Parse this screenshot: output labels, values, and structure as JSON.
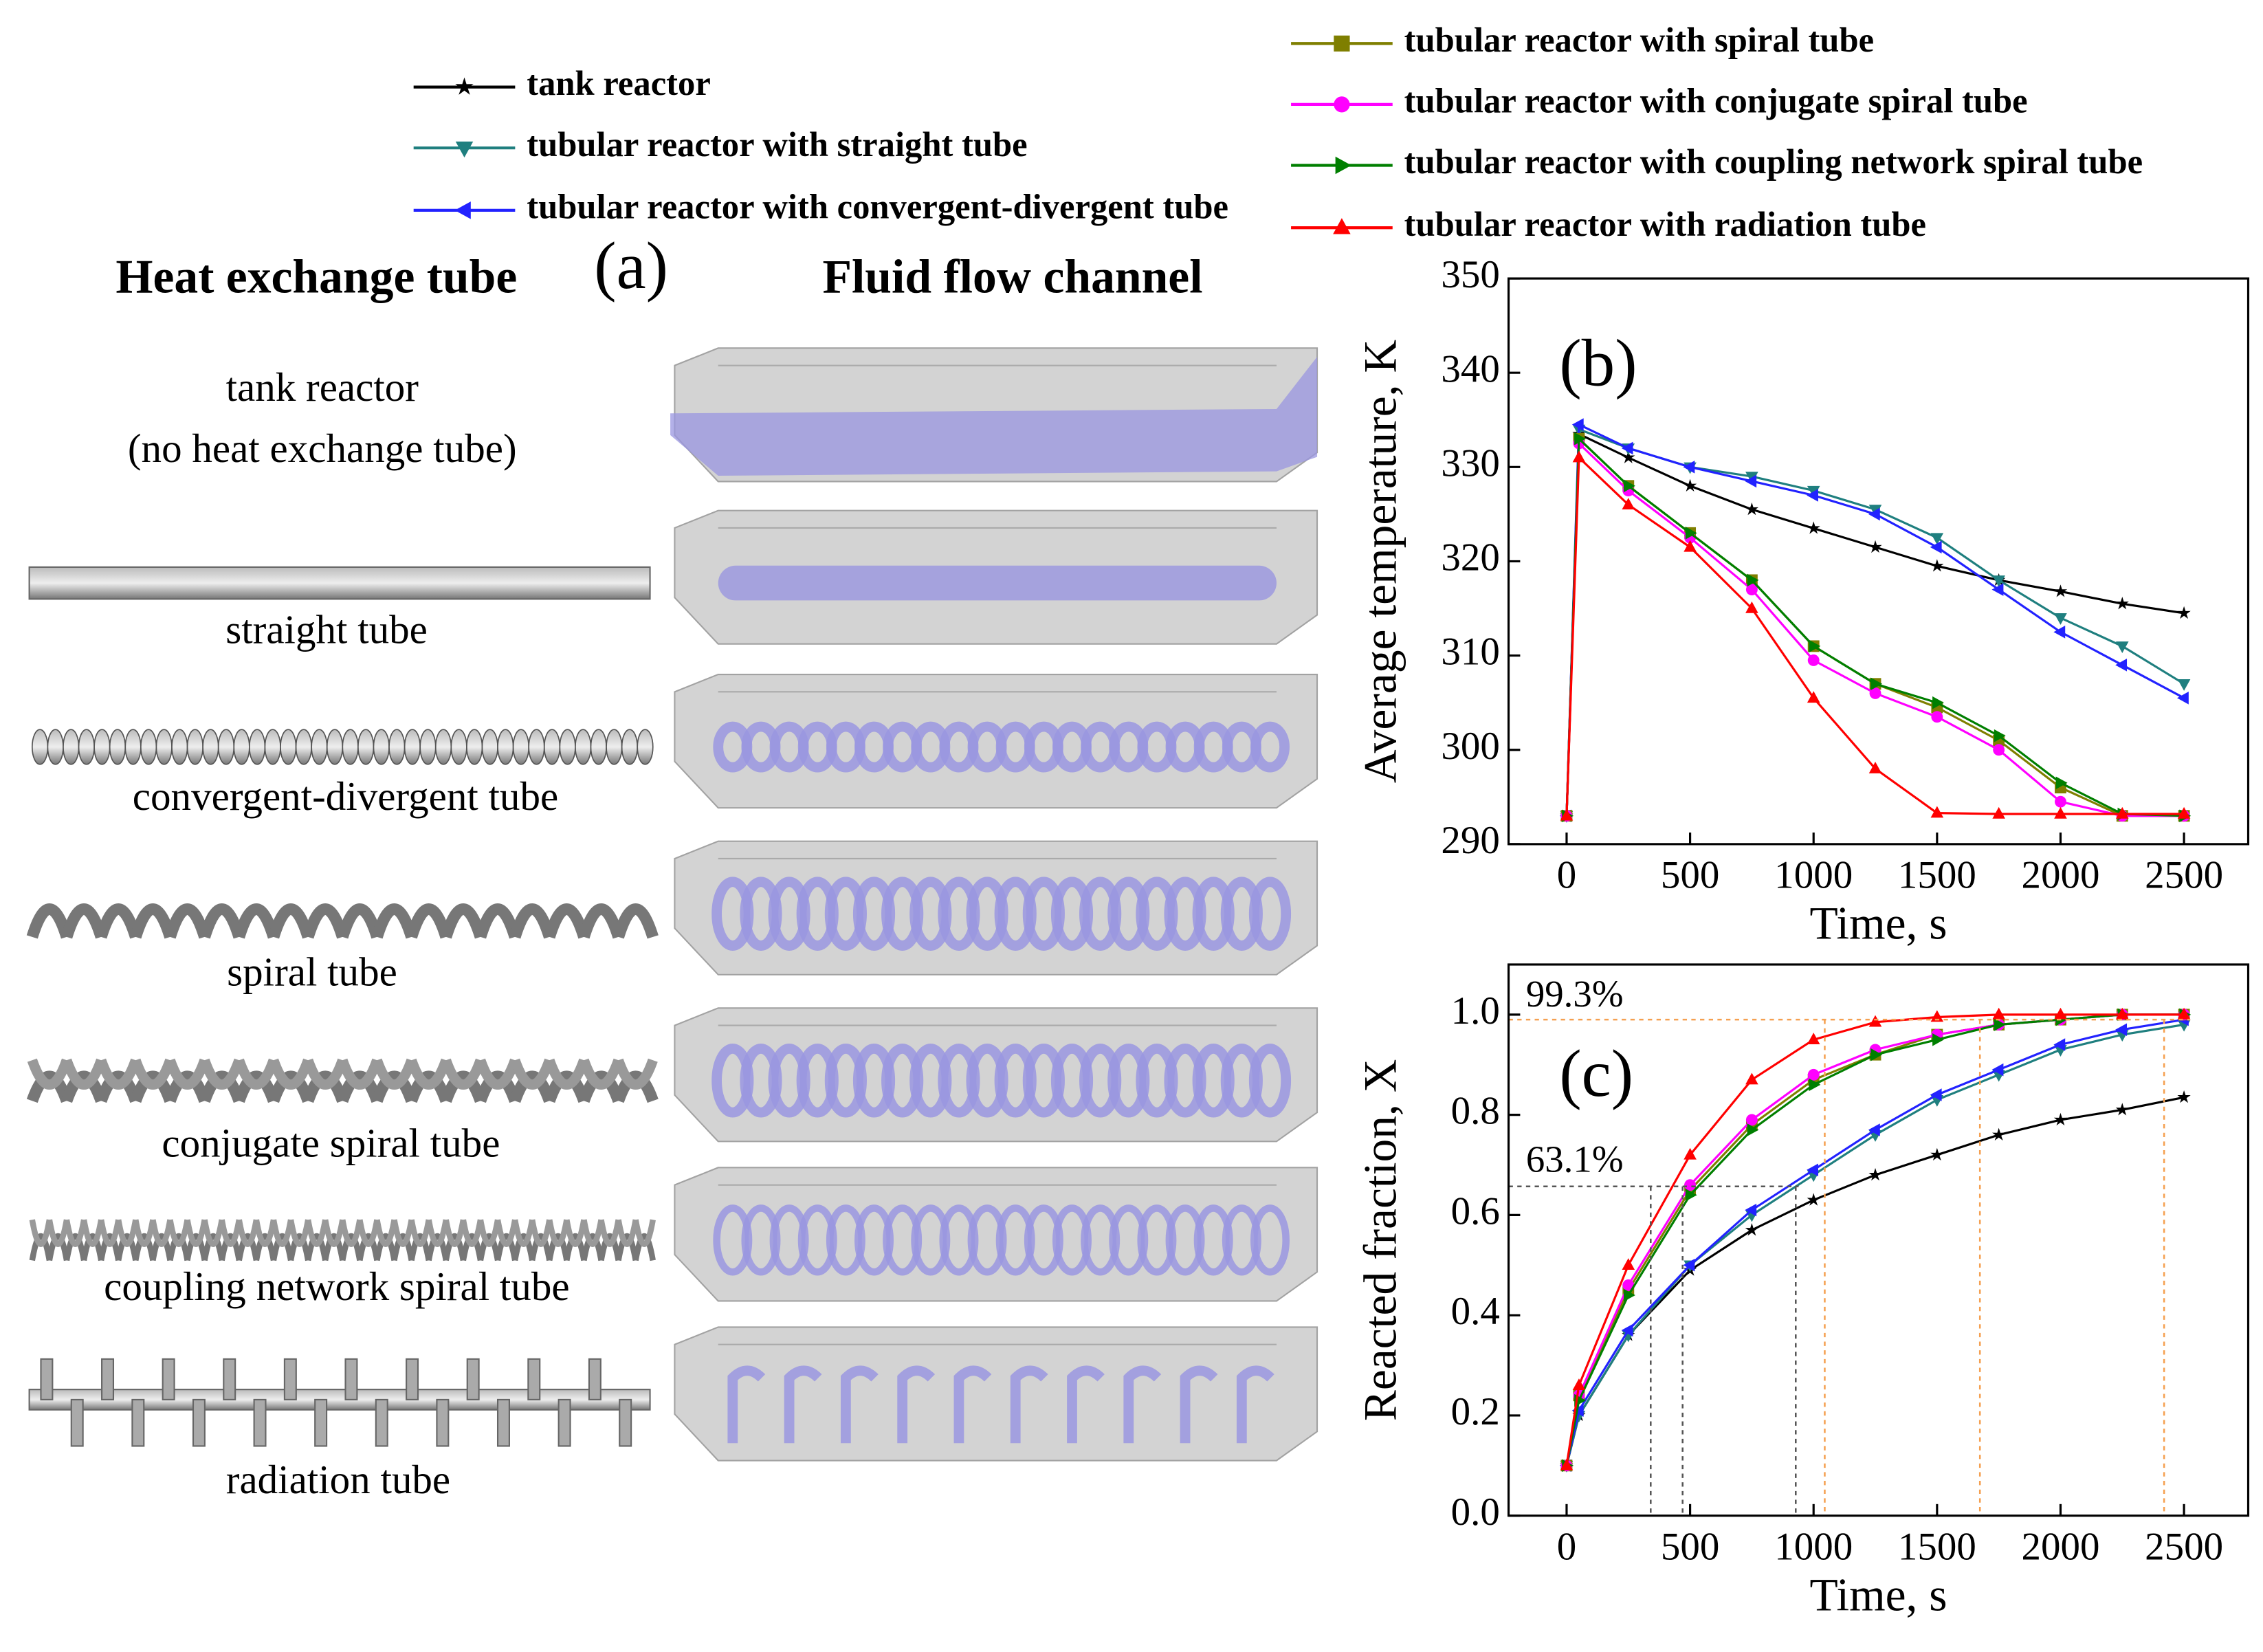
{
  "panel_a": {
    "label": "(a)",
    "headers": [
      "Heat exchange tube",
      "Fluid flow channel"
    ],
    "tubes": [
      [
        "tank reactor",
        "(no heat exchange tube)"
      ],
      [
        "straight tube"
      ],
      [
        "convergent-divergent tube"
      ],
      [
        "spiral tube"
      ],
      [
        "conjugate spiral tube"
      ],
      [
        "coupling network spiral tube"
      ],
      [
        "radiation tube"
      ]
    ]
  },
  "chart_data": [
    {
      "type": "line",
      "panel_label": "(b)",
      "ylabel": "Average temperature, K",
      "xlabel": "Time, s",
      "x": [
        0,
        50,
        250,
        500,
        750,
        1000,
        1250,
        1500,
        1750,
        2000,
        2250,
        2500
      ],
      "xlim": [
        -235,
        2760
      ],
      "xticks": [
        0,
        500,
        1000,
        1500,
        2000,
        2500
      ],
      "ylim": [
        290,
        350
      ],
      "yticks": [
        290,
        300,
        310,
        320,
        330,
        340,
        350
      ],
      "series": [
        {
          "name": "tank reactor",
          "color": "#000000",
          "marker": "star",
          "values": [
            293,
            333.5,
            331,
            328,
            325.5,
            323.5,
            321.5,
            319.5,
            318,
            316.8,
            315.5,
            314.5
          ]
        },
        {
          "name": "tubular reactor with straight tube",
          "color": "#1f7f7f",
          "marker": "tri-down",
          "values": [
            293,
            334,
            332,
            330,
            329,
            327.5,
            325.5,
            322.5,
            318,
            314,
            311,
            307
          ]
        },
        {
          "name": "tubular reactor with convergent-divergent tube",
          "color": "#2222ff",
          "marker": "tri-left",
          "values": [
            293,
            334.5,
            332,
            330,
            328.5,
            327,
            325,
            321.5,
            317,
            312.5,
            309,
            305.5
          ]
        },
        {
          "name": "tubular reactor with spiral tube",
          "color": "#7f7f00",
          "marker": "square",
          "values": [
            293,
            333,
            328,
            323,
            318,
            311,
            307,
            304.5,
            301,
            296,
            293,
            293
          ]
        },
        {
          "name": "tubular reactor with conjugate spiral tube",
          "color": "#ff00ff",
          "marker": "circle",
          "values": [
            293,
            332.5,
            327.5,
            322.5,
            317,
            309.5,
            306,
            303.5,
            300,
            294.5,
            293,
            293
          ]
        },
        {
          "name": "tubular reactor with coupling network spiral tube",
          "color": "#007f00",
          "marker": "tri-right",
          "values": [
            293,
            333,
            328,
            323,
            318,
            311,
            307,
            305,
            301.5,
            296.5,
            293.2,
            293
          ]
        },
        {
          "name": "tubular reactor with radiation tube",
          "color": "#ff0000",
          "marker": "tri-up",
          "values": [
            293,
            331,
            326,
            321.5,
            315,
            305.5,
            298,
            293.3,
            293.2,
            293.2,
            293.2,
            293.2
          ]
        }
      ]
    },
    {
      "type": "line",
      "panel_label": "(c)",
      "ylabel": "Reacted fraction, X",
      "xlabel": "Time, s",
      "annotations": [
        "99.3%",
        "63.1%"
      ],
      "x": [
        0,
        50,
        250,
        500,
        750,
        1000,
        1250,
        1500,
        1750,
        2000,
        2250,
        2500
      ],
      "xlim": [
        -235,
        2760
      ],
      "xticks": [
        0,
        500,
        1000,
        1500,
        2000,
        2500
      ],
      "ylim": [
        0,
        1.1
      ],
      "yticks": [
        {
          "value": 0,
          "label": "0.0"
        },
        0.2,
        0.4,
        0.6,
        0.8,
        {
          "value": 1,
          "label": "1.0"
        }
      ],
      "series": [
        {
          "color": "#000000",
          "marker": "star",
          "values": [
            0.1,
            0.2,
            0.36,
            0.49,
            0.57,
            0.63,
            0.68,
            0.72,
            0.76,
            0.79,
            0.81,
            0.835
          ]
        },
        {
          "color": "#1f7f7f",
          "marker": "tri-down",
          "values": [
            0.1,
            0.2,
            0.36,
            0.5,
            0.6,
            0.68,
            0.76,
            0.83,
            0.88,
            0.93,
            0.96,
            0.98
          ]
        },
        {
          "color": "#2222ff",
          "marker": "tri-left",
          "values": [
            0.1,
            0.21,
            0.37,
            0.5,
            0.61,
            0.69,
            0.77,
            0.84,
            0.89,
            0.94,
            0.97,
            0.99
          ]
        },
        {
          "color": "#7f7f00",
          "marker": "square",
          "values": [
            0.1,
            0.24,
            0.45,
            0.65,
            0.78,
            0.87,
            0.92,
            0.96,
            0.98,
            0.99,
            1,
            1
          ]
        },
        {
          "color": "#ff00ff",
          "marker": "circle",
          "values": [
            0.1,
            0.24,
            0.46,
            0.66,
            0.79,
            0.88,
            0.93,
            0.96,
            0.98,
            0.99,
            1,
            1
          ]
        },
        {
          "color": "#007f00",
          "marker": "tri-right",
          "values": [
            0.1,
            0.23,
            0.44,
            0.64,
            0.77,
            0.86,
            0.92,
            0.95,
            0.98,
            0.99,
            1,
            1
          ]
        },
        {
          "color": "#ff0000",
          "marker": "tri-up",
          "values": [
            0.1,
            0.26,
            0.5,
            0.72,
            0.87,
            0.95,
            0.985,
            0.995,
            1,
            1,
            1,
            1
          ]
        }
      ]
    }
  ]
}
